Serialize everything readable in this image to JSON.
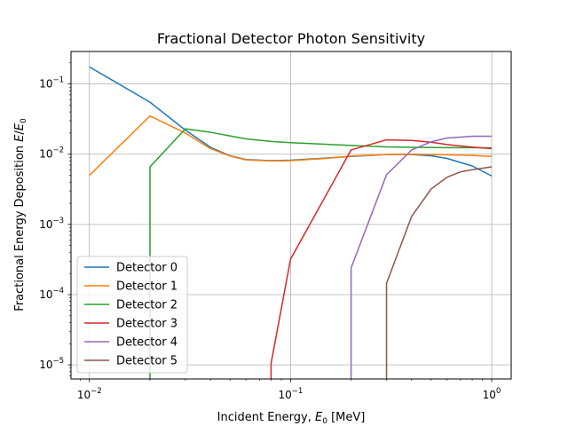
{
  "chart_data": {
    "type": "line",
    "title": "Fractional Detector Photon Sensitivity",
    "xlabel": "Incident Energy, E_0 [MeV]",
    "ylabel": "Fractional Energy Deposition E/E_0",
    "xscale": "log",
    "yscale": "log",
    "xlim": [
      0.0081,
      1.25
    ],
    "ylim": [
      6.3e-06,
      0.29
    ],
    "grid": true,
    "legend": "lower-left",
    "x_ticks": [
      {
        "value": 0.01,
        "base": "10",
        "exp": "−2"
      },
      {
        "value": 0.1,
        "base": "10",
        "exp": "−1"
      },
      {
        "value": 1,
        "base": "10",
        "exp": "0"
      }
    ],
    "y_ticks": [
      {
        "value": 1e-05,
        "base": "10",
        "exp": "−5"
      },
      {
        "value": 0.0001,
        "base": "10",
        "exp": "−4"
      },
      {
        "value": 0.001,
        "base": "10",
        "exp": "−3"
      },
      {
        "value": 0.01,
        "base": "10",
        "exp": "−2"
      },
      {
        "value": 0.1,
        "base": "10",
        "exp": "−1"
      }
    ],
    "series": [
      {
        "name": "Detector 0",
        "color": "#1f77b4",
        "x": [
          0.01,
          0.02,
          0.03,
          0.04,
          0.05,
          0.06,
          0.08,
          0.1,
          0.15,
          0.2,
          0.3,
          0.4,
          0.5,
          0.6,
          0.8,
          1.0
        ],
        "y": [
          0.175,
          0.055,
          0.022,
          0.0125,
          0.0095,
          0.0084,
          0.0081,
          0.0082,
          0.0088,
          0.0093,
          0.0099,
          0.0099,
          0.0095,
          0.0087,
          0.0068,
          0.0049
        ]
      },
      {
        "name": "Detector 1",
        "color": "#ff7f0e",
        "x": [
          0.01,
          0.02,
          0.03,
          0.04,
          0.05,
          0.06,
          0.08,
          0.1,
          0.15,
          0.2,
          0.3,
          0.4,
          0.5,
          0.6,
          0.8,
          1.0
        ],
        "y": [
          0.005,
          0.035,
          0.02,
          0.012,
          0.0094,
          0.0083,
          0.008,
          0.0081,
          0.0087,
          0.0094,
          0.0099,
          0.01,
          0.0099,
          0.0098,
          0.0096,
          0.0093
        ]
      },
      {
        "name": "Detector 2",
        "color": "#2ca02c",
        "x": [
          0.02,
          0.02,
          0.03,
          0.04,
          0.06,
          0.08,
          0.1,
          0.2,
          0.3,
          0.4,
          0.6,
          0.8,
          1.0
        ],
        "y": [
          6.3e-06,
          0.0066,
          0.023,
          0.0205,
          0.0165,
          0.0152,
          0.0146,
          0.0133,
          0.0127,
          0.0125,
          0.0124,
          0.0124,
          0.0123
        ]
      },
      {
        "name": "Detector 3",
        "color": "#d62728",
        "x": [
          0.08,
          0.08,
          0.1,
          0.2,
          0.3,
          0.4,
          0.5,
          0.6,
          0.8,
          1.0
        ],
        "y": [
          6.3e-06,
          1.05e-05,
          0.00032,
          0.0115,
          0.016,
          0.0157,
          0.0148,
          0.0137,
          0.0126,
          0.012
        ]
      },
      {
        "name": "Detector 4",
        "color": "#9467bd",
        "x": [
          0.2,
          0.2,
          0.3,
          0.4,
          0.5,
          0.6,
          0.8,
          1.0
        ],
        "y": [
          6.3e-06,
          0.00024,
          0.0051,
          0.0115,
          0.015,
          0.017,
          0.018,
          0.018
        ]
      },
      {
        "name": "Detector 5",
        "color": "#8c564b",
        "x": [
          0.3,
          0.3,
          0.4,
          0.5,
          0.6,
          0.7,
          0.8,
          1.0
        ],
        "y": [
          6.3e-06,
          0.000145,
          0.0013,
          0.0032,
          0.0047,
          0.0056,
          0.006,
          0.0066
        ]
      }
    ]
  }
}
